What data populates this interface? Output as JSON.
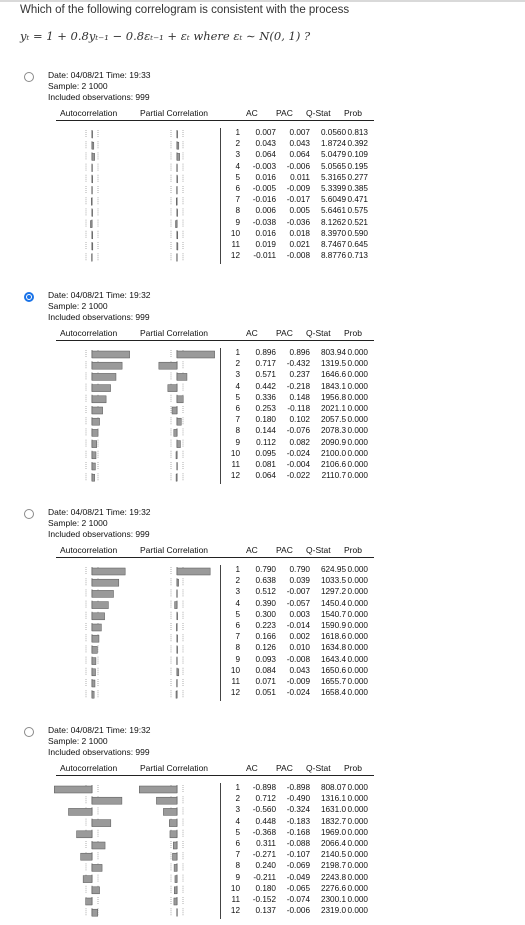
{
  "question": {
    "prompt": "Which of the following correlogram is consistent with the process",
    "equation": "yₜ = 1 + 0.8yₜ₋₁ − 0.8εₜ₋₁ + εₜ  where εₜ ∼ N(0, 1) ?"
  },
  "header_labels": {
    "ac": "AC",
    "pac": "PAC",
    "qstat": "Q-Stat",
    "prob": "Prob",
    "autocorrelation": "Autocorrelation",
    "partial_correlation": "Partial Correlation"
  },
  "options": [
    {
      "selected": false,
      "date": "Date: 04/08/21   Time: 19:33",
      "sample": "Sample: 2 1000",
      "obs": "Included observations: 999",
      "rows": [
        [
          "1",
          "0.007",
          "0.007",
          "0.0560",
          "0.813"
        ],
        [
          "2",
          "0.043",
          "0.043",
          "1.8724",
          "0.392"
        ],
        [
          "3",
          "0.064",
          "0.064",
          "5.0479",
          "0.109"
        ],
        [
          "4",
          "-0.003",
          "-0.006",
          "5.0565",
          "0.195"
        ],
        [
          "5",
          "0.016",
          "0.011",
          "5.3165",
          "0.277"
        ],
        [
          "6",
          "-0.005",
          "-0.009",
          "5.3399",
          "0.385"
        ],
        [
          "7",
          "-0.016",
          "-0.017",
          "5.6049",
          "0.471"
        ],
        [
          "8",
          "0.006",
          "0.005",
          "5.6461",
          "0.575"
        ],
        [
          "9",
          "-0.038",
          "-0.036",
          "8.1262",
          "0.521"
        ],
        [
          "10",
          "0.016",
          "0.018",
          "8.3970",
          "0.590"
        ],
        [
          "11",
          "0.019",
          "0.021",
          "8.7467",
          "0.645"
        ],
        [
          "12",
          "-0.011",
          "-0.008",
          "8.8776",
          "0.713"
        ]
      ]
    },
    {
      "selected": true,
      "date": "Date: 04/08/21   Time: 19:32",
      "sample": "Sample: 2 1000",
      "obs": "Included observations: 999",
      "rows": [
        [
          "1",
          "0.896",
          "0.896",
          "803.94",
          "0.000"
        ],
        [
          "2",
          "0.717",
          "-0.432",
          "1319.5",
          "0.000"
        ],
        [
          "3",
          "0.571",
          "0.237",
          "1646.6",
          "0.000"
        ],
        [
          "4",
          "0.442",
          "-0.218",
          "1843.1",
          "0.000"
        ],
        [
          "5",
          "0.336",
          "0.148",
          "1956.8",
          "0.000"
        ],
        [
          "6",
          "0.253",
          "-0.118",
          "2021.1",
          "0.000"
        ],
        [
          "7",
          "0.180",
          "0.102",
          "2057.5",
          "0.000"
        ],
        [
          "8",
          "0.144",
          "-0.076",
          "2078.3",
          "0.000"
        ],
        [
          "9",
          "0.112",
          "0.082",
          "2090.9",
          "0.000"
        ],
        [
          "10",
          "0.095",
          "-0.024",
          "2100.0",
          "0.000"
        ],
        [
          "11",
          "0.081",
          "-0.004",
          "2106.6",
          "0.000"
        ],
        [
          "12",
          "0.064",
          "-0.022",
          "2110.7",
          "0.000"
        ]
      ]
    },
    {
      "selected": false,
      "date": "Date: 04/08/21   Time: 19:32",
      "sample": "Sample: 2 1000",
      "obs": "Included observations: 999",
      "rows": [
        [
          "1",
          "0.790",
          "0.790",
          "624.95",
          "0.000"
        ],
        [
          "2",
          "0.638",
          "0.039",
          "1033.5",
          "0.000"
        ],
        [
          "3",
          "0.512",
          "-0.007",
          "1297.2",
          "0.000"
        ],
        [
          "4",
          "0.390",
          "-0.057",
          "1450.4",
          "0.000"
        ],
        [
          "5",
          "0.300",
          "0.003",
          "1540.7",
          "0.000"
        ],
        [
          "6",
          "0.223",
          "-0.014",
          "1590.9",
          "0.000"
        ],
        [
          "7",
          "0.166",
          "0.002",
          "1618.6",
          "0.000"
        ],
        [
          "8",
          "0.126",
          "0.010",
          "1634.8",
          "0.000"
        ],
        [
          "9",
          "0.093",
          "-0.008",
          "1643.4",
          "0.000"
        ],
        [
          "10",
          "0.084",
          "0.043",
          "1650.6",
          "0.000"
        ],
        [
          "11",
          "0.071",
          "-0.009",
          "1655.7",
          "0.000"
        ],
        [
          "12",
          "0.051",
          "-0.024",
          "1658.4",
          "0.000"
        ]
      ]
    },
    {
      "selected": false,
      "date": "Date: 04/08/21   Time: 19:32",
      "sample": "Sample: 2 1000",
      "obs": "Included observations: 999",
      "rows": [
        [
          "1",
          "-0.898",
          "-0.898",
          "808.07",
          "0.000"
        ],
        [
          "2",
          "0.712",
          "-0.490",
          "1316.1",
          "0.000"
        ],
        [
          "3",
          "-0.560",
          "-0.324",
          "1631.0",
          "0.000"
        ],
        [
          "4",
          "0.448",
          "-0.183",
          "1832.7",
          "0.000"
        ],
        [
          "5",
          "-0.368",
          "-0.168",
          "1969.0",
          "0.000"
        ],
        [
          "6",
          "0.311",
          "-0.088",
          "2066.4",
          "0.000"
        ],
        [
          "7",
          "-0.271",
          "-0.107",
          "2140.5",
          "0.000"
        ],
        [
          "8",
          "0.240",
          "-0.069",
          "2198.7",
          "0.000"
        ],
        [
          "9",
          "-0.211",
          "-0.049",
          "2243.8",
          "0.000"
        ],
        [
          "10",
          "0.180",
          "-0.065",
          "2276.6",
          "0.000"
        ],
        [
          "11",
          "-0.152",
          "-0.074",
          "2300.1",
          "0.000"
        ],
        [
          "12",
          "0.137",
          "-0.006",
          "2319.0",
          "0.000"
        ]
      ]
    }
  ]
}
